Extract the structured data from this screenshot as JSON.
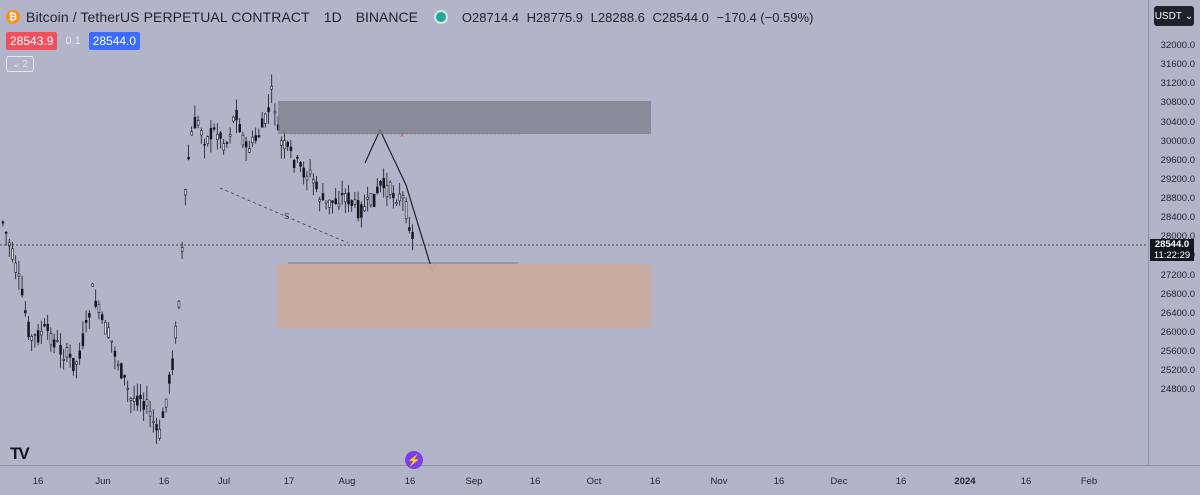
{
  "header": {
    "logo_icon": "bitcoin-logo-icon",
    "symbol": "Bitcoin / TetherUS PERPETUAL CONTRACT",
    "timeframe": "1D",
    "exchange": "BINANCE",
    "market_status_color": "#26a69a",
    "ohlc": {
      "open": "O28714.4",
      "high": "H28775.9",
      "low": "L28288.6",
      "close": "C28544.0",
      "change": "−170.4 (−0.59%)"
    }
  },
  "trade": {
    "sell_price": "28543.9",
    "spread": "0.1",
    "buy_price": "28544.0"
  },
  "indicators_toggle": {
    "count": "2",
    "icon": "chevron-down-icon"
  },
  "currency_button": {
    "label": "USDT",
    "icon": "chevron-down-icon"
  },
  "price_axis": {
    "labels": [
      "32000.0",
      "31600.0",
      "31200.0",
      "30800.0",
      "30400.0",
      "30000.0",
      "29600.0",
      "29200.0",
      "28800.0",
      "28400.0",
      "28000.0",
      "27600.0",
      "27200.0",
      "26800.0",
      "26400.0",
      "26000.0",
      "25600.0",
      "25200.0",
      "24800.0"
    ],
    "current_price": "28544.0",
    "countdown": "11:22:29"
  },
  "time_axis": {
    "labels": [
      {
        "text": "16",
        "bold": false
      },
      {
        "text": "Jun",
        "bold": false
      },
      {
        "text": "16",
        "bold": false
      },
      {
        "text": "Jul",
        "bold": false
      },
      {
        "text": "17",
        "bold": false
      },
      {
        "text": "Aug",
        "bold": false
      },
      {
        "text": "16",
        "bold": false
      },
      {
        "text": "Sep",
        "bold": false
      },
      {
        "text": "16",
        "bold": false
      },
      {
        "text": "Oct",
        "bold": false
      },
      {
        "text": "16",
        "bold": false
      },
      {
        "text": "Nov",
        "bold": false
      },
      {
        "text": "16",
        "bold": false
      },
      {
        "text": "Dec",
        "bold": false
      },
      {
        "text": "16",
        "bold": false
      },
      {
        "text": "2024",
        "bold": true
      },
      {
        "text": "16",
        "bold": false
      },
      {
        "text": "Feb",
        "bold": false
      }
    ]
  },
  "drawings": {
    "supply_zone": {
      "from": 30400,
      "to": 31050,
      "color": "#7b7d8a"
    },
    "demand_zone": {
      "from": 27100,
      "to": 28200,
      "color": "#c9ab9c"
    },
    "trendline_label": "S",
    "marker_label": "x"
  },
  "branding": {
    "logo": "TV",
    "logo_icon": "tradingview-logo-icon",
    "bolt_icon": "lightning-icon"
  },
  "colors": {
    "background": "#b2b5ca",
    "candle": "#131722",
    "accent_sell": "#f0505b",
    "accent_buy": "#3b6cff"
  }
}
